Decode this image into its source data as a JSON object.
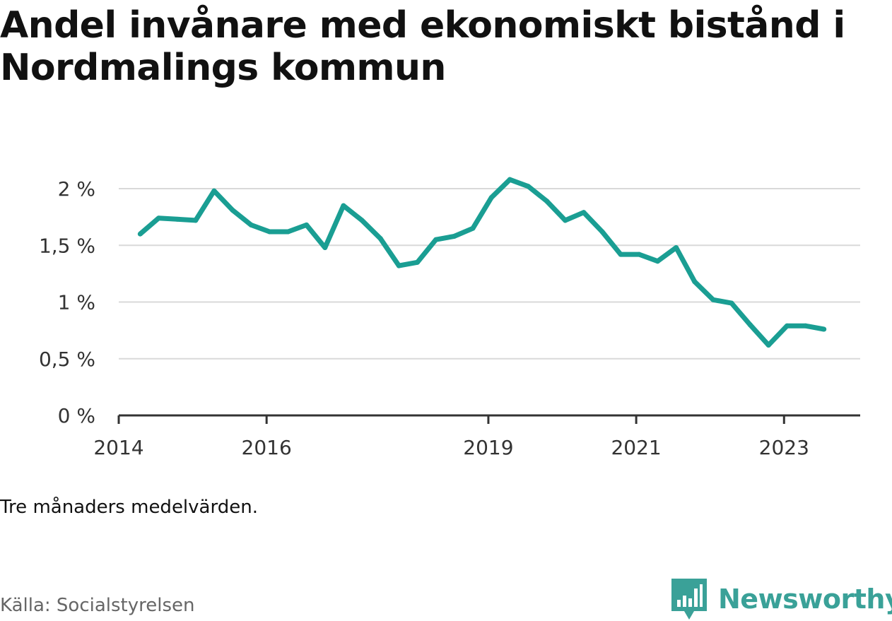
{
  "title": "Andel invånare med ekonomiskt bistånd i Nordmalings kommun",
  "note": "Tre månaders medelvärden.",
  "source": "Källa: Socialstyrelsen",
  "brand": {
    "name": "Newsworthy",
    "icon": "newsworthy-logo-icon"
  },
  "colors": {
    "line": "#1a9e93",
    "grid": "#d9d9d9",
    "axis": "#333333",
    "brand": "#3aa198"
  },
  "chart_data": {
    "type": "line",
    "title": "Andel invånare med ekonomiskt bistånd i Nordmalings kommun",
    "xlabel": "",
    "ylabel": "",
    "ylim": [
      0,
      2
    ],
    "yticks": [
      {
        "value": 0,
        "label": "0 %"
      },
      {
        "value": 0.5,
        "label": "0,5 %"
      },
      {
        "value": 1,
        "label": "1 %"
      },
      {
        "value": 1.5,
        "label": "1,5 %"
      },
      {
        "value": 2,
        "label": "2 %"
      }
    ],
    "xlim": [
      2014.0,
      2024.03
    ],
    "xticks": [
      {
        "value": 2014.0,
        "label": "2014"
      },
      {
        "value": 2016.0,
        "label": "2016"
      },
      {
        "value": 2019.0,
        "label": "2019"
      },
      {
        "value": 2021.0,
        "label": "2021"
      },
      {
        "value": 2023.0,
        "label": "2023"
      }
    ],
    "grid": true,
    "legend": "none",
    "series": [
      {
        "x": [
          2014.29,
          2014.54,
          2014.79,
          2015.04,
          2015.29,
          2015.54,
          2015.79,
          2016.04,
          2016.29,
          2016.54,
          2016.79,
          2017.04,
          2017.29,
          2017.54,
          2017.79,
          2018.04,
          2018.29,
          2018.54,
          2018.79,
          2019.04,
          2019.29,
          2019.54,
          2019.79,
          2020.04,
          2020.29,
          2020.54,
          2020.79,
          2021.04,
          2021.29,
          2021.54,
          2021.79,
          2022.04,
          2022.29,
          2022.54,
          2022.79,
          2023.04,
          2023.29,
          2023.54
        ],
        "values": [
          1.6,
          1.74,
          1.73,
          1.72,
          1.98,
          1.81,
          1.68,
          1.62,
          1.62,
          1.68,
          1.48,
          1.85,
          1.72,
          1.56,
          1.32,
          1.35,
          1.55,
          1.58,
          1.65,
          1.92,
          2.08,
          2.02,
          1.89,
          1.72,
          1.79,
          1.62,
          1.42,
          1.42,
          1.36,
          1.48,
          1.18,
          1.02,
          0.99,
          0.8,
          0.62,
          0.79,
          0.79,
          0.76
        ]
      }
    ]
  }
}
